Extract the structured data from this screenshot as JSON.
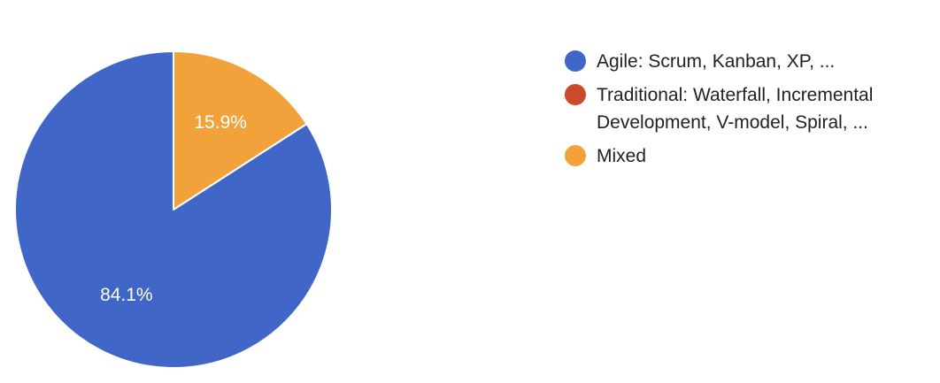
{
  "chart_data": {
    "type": "pie",
    "categories": [
      "Agile: Scrum, Kanban, XP, ...",
      "Traditional: Waterfall, Incremental Development, V-model, Spiral, ...",
      "Mixed"
    ],
    "values": [
      84.1,
      0,
      15.9
    ],
    "data_labels": [
      "84.1%",
      "",
      "15.9%"
    ],
    "colors": [
      "#4066c8",
      "#cc4a2c",
      "#f2a23a"
    ],
    "legend_position": "right",
    "start_angle_deg": 90,
    "direction": "clockwise"
  }
}
